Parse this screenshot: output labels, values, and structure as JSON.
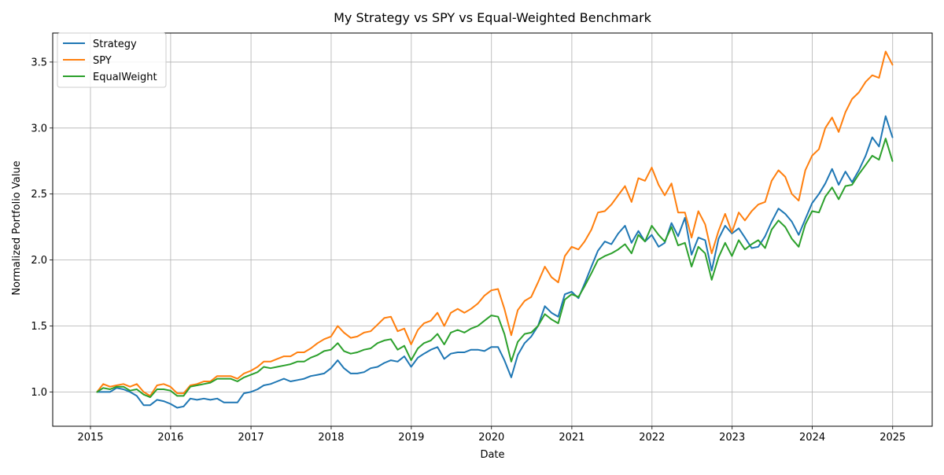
{
  "chart_data": {
    "type": "line",
    "title": "My Strategy vs SPY vs Equal-Weighted Benchmark",
    "xlabel": "Date",
    "ylabel": "Normalized Portfolio Value",
    "xlim": [
      "2014-07-13",
      "2025-06-30"
    ],
    "ylim": [
      0.74,
      3.72
    ],
    "x_ticks": [
      "2015",
      "2016",
      "2017",
      "2018",
      "2019",
      "2020",
      "2021",
      "2022",
      "2023",
      "2024",
      "2025"
    ],
    "y_ticks": [
      "1.0",
      "1.5",
      "2.0",
      "2.5",
      "3.0",
      "3.5"
    ],
    "grid": true,
    "legend_position": "upper-left",
    "x": [
      "2015-01-31",
      "2015-02-28",
      "2015-03-31",
      "2015-04-30",
      "2015-05-31",
      "2015-06-30",
      "2015-07-31",
      "2015-08-31",
      "2015-09-30",
      "2015-10-31",
      "2015-11-30",
      "2015-12-31",
      "2016-01-31",
      "2016-02-29",
      "2016-03-31",
      "2016-04-30",
      "2016-05-31",
      "2016-06-30",
      "2016-07-31",
      "2016-08-31",
      "2016-09-30",
      "2016-10-31",
      "2016-11-30",
      "2016-12-31",
      "2017-01-31",
      "2017-02-28",
      "2017-03-31",
      "2017-04-30",
      "2017-05-31",
      "2017-06-30",
      "2017-07-31",
      "2017-08-31",
      "2017-09-30",
      "2017-10-31",
      "2017-11-30",
      "2017-12-31",
      "2018-01-31",
      "2018-02-28",
      "2018-03-31",
      "2018-04-30",
      "2018-05-31",
      "2018-06-30",
      "2018-07-31",
      "2018-08-31",
      "2018-09-30",
      "2018-10-31",
      "2018-11-30",
      "2018-12-31",
      "2019-01-31",
      "2019-02-28",
      "2019-03-31",
      "2019-04-30",
      "2019-05-31",
      "2019-06-30",
      "2019-07-31",
      "2019-08-31",
      "2019-09-30",
      "2019-10-31",
      "2019-11-30",
      "2019-12-31",
      "2020-01-31",
      "2020-02-29",
      "2020-03-31",
      "2020-04-30",
      "2020-05-31",
      "2020-06-30",
      "2020-07-31",
      "2020-08-31",
      "2020-09-30",
      "2020-10-31",
      "2020-11-30",
      "2020-12-31",
      "2021-01-31",
      "2021-02-28",
      "2021-03-31",
      "2021-04-30",
      "2021-05-31",
      "2021-06-30",
      "2021-07-31",
      "2021-08-31",
      "2021-09-30",
      "2021-10-31",
      "2021-11-30",
      "2021-12-31",
      "2022-01-31",
      "2022-02-28",
      "2022-03-31",
      "2022-04-30",
      "2022-05-31",
      "2022-06-30",
      "2022-07-31",
      "2022-08-31",
      "2022-09-30",
      "2022-10-31",
      "2022-11-30",
      "2022-12-31",
      "2023-01-31",
      "2023-02-28",
      "2023-03-31",
      "2023-04-30",
      "2023-05-31",
      "2023-06-30",
      "2023-07-31",
      "2023-08-31",
      "2023-09-30",
      "2023-10-31",
      "2023-11-30",
      "2023-12-31",
      "2024-01-31",
      "2024-02-29",
      "2024-03-31",
      "2024-04-30",
      "2024-05-31",
      "2024-06-30",
      "2024-07-31",
      "2024-08-31",
      "2024-09-30",
      "2024-10-31",
      "2024-11-30",
      "2024-12-31"
    ],
    "series": [
      {
        "name": "Strategy",
        "color": "#1f77b4",
        "values": [
          1.0,
          1.0,
          1.0,
          1.03,
          1.02,
          1.0,
          0.97,
          0.9,
          0.9,
          0.94,
          0.93,
          0.91,
          0.88,
          0.89,
          0.95,
          0.94,
          0.95,
          0.94,
          0.95,
          0.92,
          0.92,
          0.92,
          0.99,
          1.0,
          1.02,
          1.05,
          1.06,
          1.08,
          1.1,
          1.08,
          1.09,
          1.1,
          1.12,
          1.13,
          1.14,
          1.18,
          1.24,
          1.18,
          1.14,
          1.14,
          1.15,
          1.18,
          1.19,
          1.22,
          1.24,
          1.23,
          1.27,
          1.19,
          1.26,
          1.29,
          1.32,
          1.34,
          1.25,
          1.29,
          1.3,
          1.3,
          1.32,
          1.32,
          1.31,
          1.34,
          1.34,
          1.24,
          1.11,
          1.28,
          1.37,
          1.42,
          1.5,
          1.65,
          1.6,
          1.57,
          1.74,
          1.76,
          1.71,
          1.82,
          1.95,
          2.07,
          2.14,
          2.12,
          2.2,
          2.26,
          2.13,
          2.22,
          2.14,
          2.19,
          2.1,
          2.13,
          2.28,
          2.18,
          2.32,
          2.04,
          2.17,
          2.15,
          1.92,
          2.16,
          2.26,
          2.2,
          2.24,
          2.17,
          2.09,
          2.1,
          2.18,
          2.29,
          2.39,
          2.35,
          2.29,
          2.19,
          2.31,
          2.43,
          2.5,
          2.58,
          2.69,
          2.57,
          2.67,
          2.59,
          2.68,
          2.79,
          2.93,
          2.86,
          3.09,
          2.93
        ]
      },
      {
        "name": "SPY",
        "color": "#ff7f0e",
        "values": [
          1.0,
          1.06,
          1.04,
          1.05,
          1.06,
          1.04,
          1.06,
          1.0,
          0.97,
          1.05,
          1.06,
          1.04,
          0.99,
          0.99,
          1.05,
          1.06,
          1.08,
          1.08,
          1.12,
          1.12,
          1.12,
          1.1,
          1.14,
          1.16,
          1.19,
          1.23,
          1.23,
          1.25,
          1.27,
          1.27,
          1.3,
          1.3,
          1.33,
          1.37,
          1.4,
          1.42,
          1.5,
          1.45,
          1.41,
          1.42,
          1.45,
          1.46,
          1.51,
          1.56,
          1.57,
          1.46,
          1.48,
          1.36,
          1.47,
          1.52,
          1.54,
          1.6,
          1.5,
          1.6,
          1.63,
          1.6,
          1.63,
          1.67,
          1.73,
          1.77,
          1.78,
          1.63,
          1.43,
          1.62,
          1.69,
          1.72,
          1.83,
          1.95,
          1.87,
          1.83,
          2.03,
          2.1,
          2.08,
          2.14,
          2.23,
          2.36,
          2.37,
          2.42,
          2.49,
          2.56,
          2.44,
          2.62,
          2.6,
          2.7,
          2.57,
          2.49,
          2.58,
          2.36,
          2.36,
          2.17,
          2.37,
          2.27,
          2.05,
          2.22,
          2.35,
          2.21,
          2.36,
          2.3,
          2.37,
          2.42,
          2.44,
          2.6,
          2.68,
          2.63,
          2.5,
          2.45,
          2.68,
          2.79,
          2.84,
          3.0,
          3.08,
          2.97,
          3.12,
          3.22,
          3.27,
          3.35,
          3.4,
          3.38,
          3.58,
          3.48
        ]
      },
      {
        "name": "EqualWeight",
        "color": "#2ca02c",
        "values": [
          1.0,
          1.03,
          1.02,
          1.04,
          1.04,
          1.01,
          1.02,
          0.98,
          0.96,
          1.02,
          1.02,
          1.01,
          0.97,
          0.97,
          1.04,
          1.05,
          1.06,
          1.07,
          1.1,
          1.1,
          1.1,
          1.08,
          1.11,
          1.13,
          1.15,
          1.19,
          1.18,
          1.19,
          1.2,
          1.21,
          1.23,
          1.23,
          1.26,
          1.28,
          1.31,
          1.32,
          1.37,
          1.31,
          1.29,
          1.3,
          1.32,
          1.33,
          1.37,
          1.39,
          1.4,
          1.32,
          1.35,
          1.24,
          1.33,
          1.37,
          1.39,
          1.44,
          1.36,
          1.45,
          1.47,
          1.45,
          1.48,
          1.5,
          1.54,
          1.58,
          1.57,
          1.44,
          1.23,
          1.38,
          1.44,
          1.45,
          1.5,
          1.59,
          1.55,
          1.52,
          1.7,
          1.74,
          1.72,
          1.8,
          1.9,
          2.0,
          2.03,
          2.05,
          2.08,
          2.12,
          2.05,
          2.19,
          2.14,
          2.26,
          2.19,
          2.14,
          2.25,
          2.11,
          2.13,
          1.95,
          2.1,
          2.05,
          1.85,
          2.02,
          2.13,
          2.03,
          2.15,
          2.08,
          2.12,
          2.15,
          2.09,
          2.23,
          2.3,
          2.25,
          2.16,
          2.1,
          2.27,
          2.37,
          2.36,
          2.48,
          2.55,
          2.46,
          2.56,
          2.57,
          2.65,
          2.72,
          2.79,
          2.76,
          2.92,
          2.75
        ]
      }
    ]
  }
}
